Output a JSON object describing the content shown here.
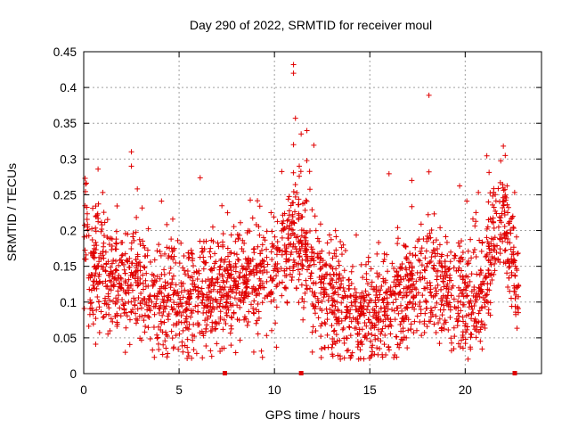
{
  "chart_data": {
    "type": "scatter",
    "title": "Day 290 of 2022, SRMTID for receiver moul",
    "xlabel": "GPS time / hours",
    "ylabel": "SRMTID / TECUs",
    "xlim": [
      0,
      24
    ],
    "ylim": [
      0,
      0.45
    ],
    "x_ticks": [
      0,
      5,
      10,
      15,
      20
    ],
    "y_ticks": [
      0,
      0.05,
      0.1,
      0.15,
      0.2,
      0.25,
      0.3,
      0.35,
      0.4,
      0.45
    ],
    "x_tick_labels": [
      "0",
      "5",
      "10",
      "15",
      "20"
    ],
    "y_tick_labels": [
      "0",
      "0.05",
      "0.1",
      "0.15",
      "0.2",
      "0.25",
      "0.3",
      "0.35",
      "0.4",
      "0.45"
    ],
    "grid": true,
    "marker": "+",
    "color": "#e00000",
    "series": [
      {
        "name": "SRMTID",
        "profile": [
          [
            0.0,
            0.14
          ],
          [
            0.1,
            0.23
          ],
          [
            0.3,
            0.13
          ],
          [
            1.0,
            0.15
          ],
          [
            2.0,
            0.12
          ],
          [
            2.6,
            0.15
          ],
          [
            3.0,
            0.12
          ],
          [
            4.0,
            0.11
          ],
          [
            5.0,
            0.11
          ],
          [
            6.0,
            0.12
          ],
          [
            7.0,
            0.12
          ],
          [
            8.0,
            0.13
          ],
          [
            9.0,
            0.14
          ],
          [
            10.0,
            0.15
          ],
          [
            10.8,
            0.18
          ],
          [
            11.2,
            0.19
          ],
          [
            11.6,
            0.17
          ],
          [
            12.0,
            0.14
          ],
          [
            13.0,
            0.1
          ],
          [
            14.0,
            0.09
          ],
          [
            15.0,
            0.08
          ],
          [
            16.0,
            0.09
          ],
          [
            16.8,
            0.12
          ],
          [
            17.5,
            0.12
          ],
          [
            18.0,
            0.14
          ],
          [
            19.0,
            0.12
          ],
          [
            20.0,
            0.1
          ],
          [
            21.0,
            0.12
          ],
          [
            21.5,
            0.2
          ],
          [
            22.0,
            0.23
          ],
          [
            22.5,
            0.16
          ],
          [
            22.8,
            0.12
          ]
        ],
        "spread": 0.045,
        "count": 2400,
        "notable_points": [
          [
            11.0,
            0.432
          ],
          [
            11.0,
            0.42
          ],
          [
            11.1,
            0.357
          ],
          [
            11.4,
            0.335
          ],
          [
            11.0,
            0.32
          ],
          [
            11.3,
            0.29
          ],
          [
            18.1,
            0.389
          ],
          [
            18.1,
            0.282
          ],
          [
            2.5,
            0.31
          ],
          [
            2.5,
            0.29
          ],
          [
            22.0,
            0.318
          ],
          [
            22.1,
            0.305
          ],
          [
            17.2,
            0.27
          ],
          [
            0.1,
            0.265
          ]
        ]
      }
    ],
    "gap_markers_x": [
      7.4,
      11.4,
      22.6
    ]
  }
}
